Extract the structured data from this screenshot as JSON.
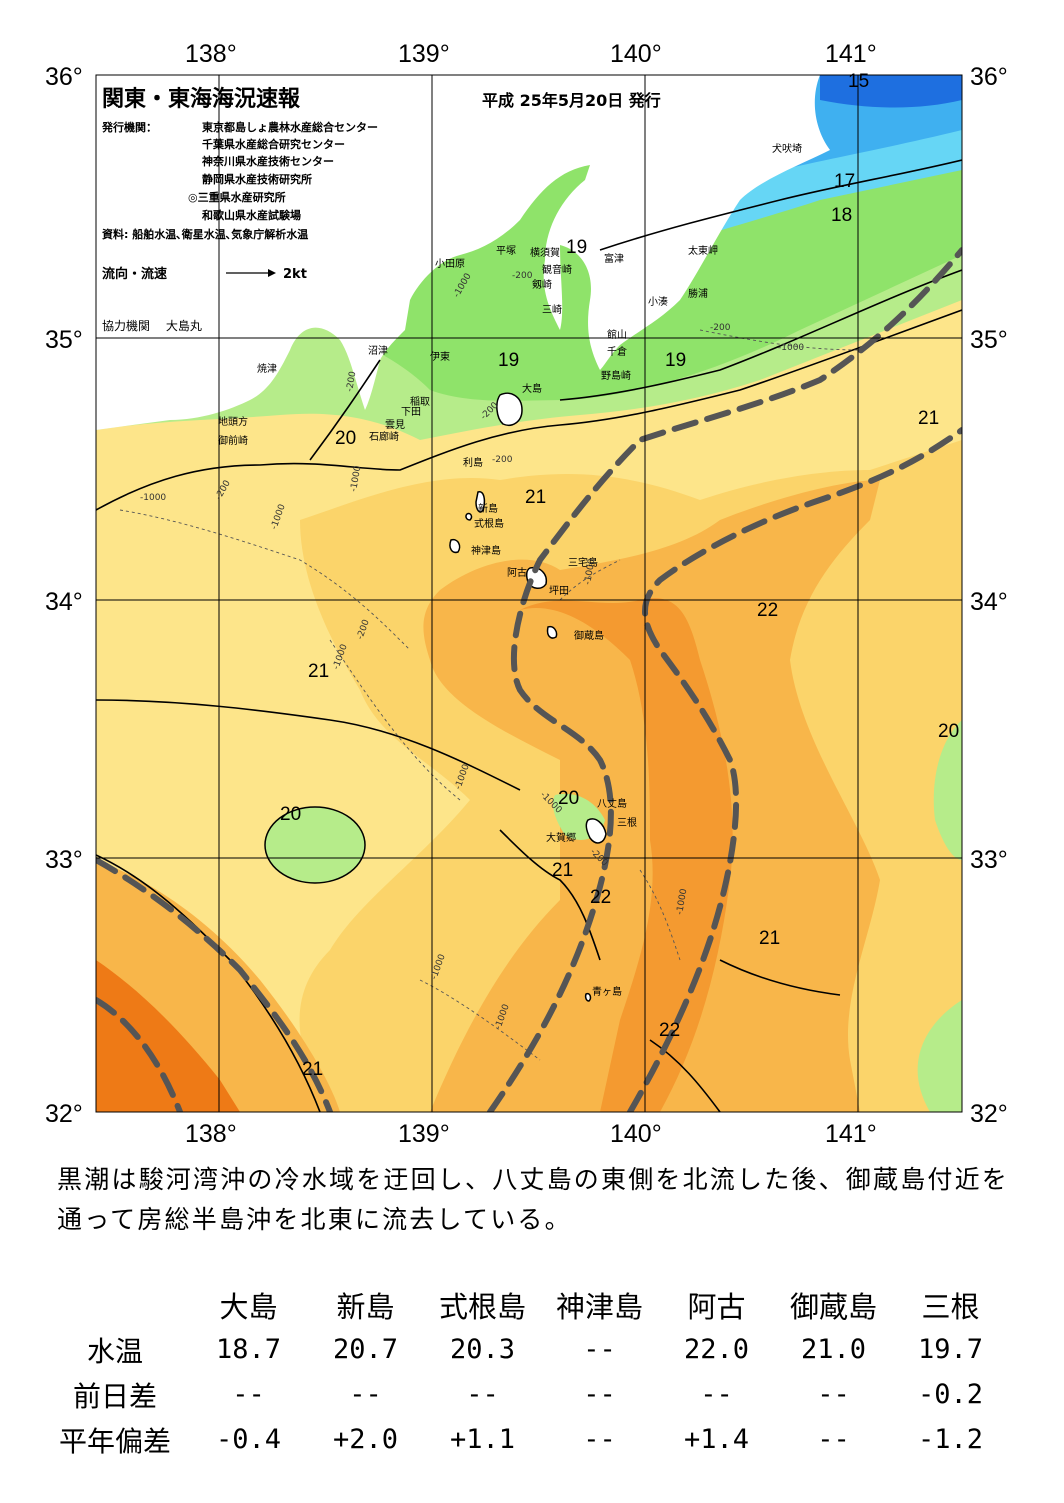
{
  "title": "関東・東海海況速報",
  "issued": "平成 25年5月20日 発行",
  "publisher_label": "発行機関：",
  "publishers": [
    "東京都島しょ農林水産総合センター",
    "千葉県水産総合研究センター",
    "神奈川県水産技術センター",
    "静岡県水産技術研究所",
    "◎三重県水産研究所",
    "和歌山県水産試験場"
  ],
  "sources": "資料: 船舶水温､衛星水温､気象庁解析水温",
  "flow_label": "流向・流速",
  "flow_scale": "2kt",
  "cooperator": "協力機関　 大島丸",
  "lon_labels": [
    "138°",
    "139°",
    "140°",
    "141°"
  ],
  "lat_labels": [
    "36°",
    "35°",
    "34°",
    "33°",
    "32°"
  ],
  "place_names": [
    "犬吠埼",
    "太東岬",
    "勝浦",
    "小湊",
    "富津",
    "横須賀",
    "観音崎",
    "剱崎",
    "三崎",
    "平塚",
    "小田原",
    "館山",
    "千倉",
    "野島崎",
    "沼津",
    "焼津",
    "伊東",
    "稲取",
    "下田",
    "雲見",
    "石廊崎",
    "地頭方",
    "御前崎",
    "大島",
    "利島",
    "新島",
    "式根島",
    "神津島",
    "三宅島",
    "阿古",
    "坪田",
    "御蔵島",
    "八丈島",
    "三根",
    "大賀郷",
    "青ヶ島"
  ],
  "isotherm_labels": [
    "15",
    "17",
    "18",
    "19",
    "19",
    "19",
    "20",
    "20",
    "20",
    "20",
    "21",
    "21",
    "21",
    "21",
    "21",
    "21",
    "22",
    "22",
    "22"
  ],
  "depth_labels": [
    "-200",
    "-1000"
  ],
  "description": "黒潮は駿河湾沖の冷水域を迂回し、八丈島の東側を北流した後、御蔵島付近を通って房総半島沖を北東に流去している。",
  "table": {
    "stations": [
      "大島",
      "新島",
      "式根島",
      "神津島",
      "阿古",
      "御蔵島",
      "三根"
    ],
    "rows": [
      {
        "label": "水温",
        "values": [
          "18.7",
          "20.7",
          "20.3",
          "--",
          "22.0",
          "21.0",
          "19.7"
        ]
      },
      {
        "label": "前日差",
        "values": [
          "--",
          "--",
          "--",
          "--",
          "--",
          "--",
          "-0.2"
        ]
      },
      {
        "label": "平年偏差",
        "values": [
          "-0.4",
          "+2.0",
          "+1.1",
          "--",
          "+1.4",
          "--",
          "-1.2"
        ]
      }
    ]
  },
  "colors": {
    "land": "#ffffff",
    "t15": "#1e6fe0",
    "t17": "#3fb0f0",
    "t18": "#66d6f5",
    "t19": "#8fe36a",
    "t20": "#b6ec8a",
    "t21": "#fde58a",
    "t21b": "#fbd46a",
    "t22": "#f8b64a",
    "t22b": "#f49a30",
    "t23": "#ee7a16",
    "kuroshio": "#555555"
  }
}
